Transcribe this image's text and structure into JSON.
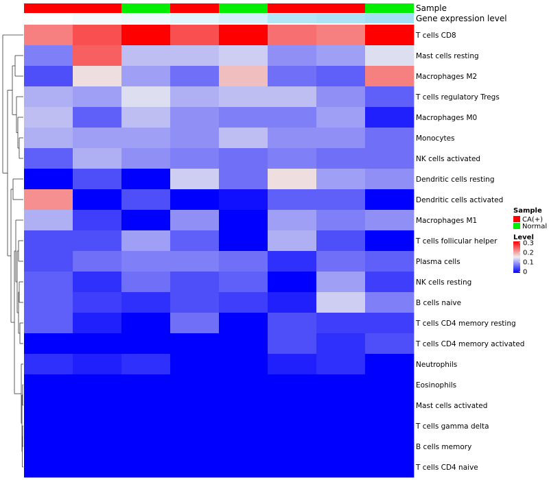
{
  "chart_data": {
    "type": "heatmap",
    "title": "",
    "annotations": [
      {
        "name": "Sample",
        "values": [
          "CA(+)",
          "CA(+)",
          "Normal",
          "CA(+)",
          "Normal",
          "CA(+)",
          "CA(+)",
          "Normal"
        ]
      },
      {
        "name": "Gene expression level",
        "values": [
          0.0,
          0.08,
          0.12,
          0.2,
          0.3,
          0.5,
          0.55,
          0.6
        ]
      }
    ],
    "rows": [
      "T cells CD8",
      "Mast cells resting",
      "Macrophages M2",
      "T cells regulatory  Tregs",
      "Macrophages M0",
      "Monocytes",
      "NK cells activated",
      "Dendritic cells resting",
      "Dendritic cells activated",
      "Macrophages M1",
      "T cells follicular helper",
      "Plasma cells",
      "NK cells resting",
      "B cells naive",
      "T cells CD4 memory resting",
      "T cells CD4 memory activated",
      "Neutrophils",
      "Eosinophils",
      "Mast cells activated",
      "T cells gamma delta",
      "B cells memory",
      "T cells CD4 naive"
    ],
    "values": [
      [
        0.22,
        0.25,
        0.3,
        0.25,
        0.3,
        0.23,
        0.22,
        0.3
      ],
      [
        0.08,
        0.24,
        0.12,
        0.12,
        0.13,
        0.09,
        0.1,
        0.14
      ],
      [
        0.05,
        0.16,
        0.1,
        0.07,
        0.18,
        0.07,
        0.06,
        0.22
      ],
      [
        0.11,
        0.1,
        0.14,
        0.11,
        0.12,
        0.12,
        0.09,
        0.06
      ],
      [
        0.12,
        0.06,
        0.12,
        0.09,
        0.08,
        0.08,
        0.1,
        0.02
      ],
      [
        0.11,
        0.1,
        0.1,
        0.09,
        0.12,
        0.09,
        0.09,
        0.07
      ],
      [
        0.06,
        0.11,
        0.09,
        0.08,
        0.07,
        0.08,
        0.07,
        0.07
      ],
      [
        0.0,
        0.05,
        0.0,
        0.13,
        0.07,
        0.16,
        0.1,
        0.09
      ],
      [
        0.21,
        0.0,
        0.05,
        0.0,
        0.01,
        0.06,
        0.06,
        0.0
      ],
      [
        0.11,
        0.04,
        0.0,
        0.09,
        0.0,
        0.1,
        0.08,
        0.09
      ],
      [
        0.05,
        0.05,
        0.1,
        0.06,
        0.0,
        0.11,
        0.05,
        0.0
      ],
      [
        0.05,
        0.07,
        0.08,
        0.08,
        0.07,
        0.03,
        0.07,
        0.06
      ],
      [
        0.06,
        0.03,
        0.07,
        0.05,
        0.06,
        0.0,
        0.1,
        0.04
      ],
      [
        0.06,
        0.04,
        0.03,
        0.05,
        0.04,
        0.02,
        0.13,
        0.08
      ],
      [
        0.06,
        0.02,
        0.0,
        0.07,
        0.0,
        0.05,
        0.04,
        0.04
      ],
      [
        0.0,
        0.0,
        0.0,
        0.0,
        0.0,
        0.05,
        0.03,
        0.05
      ],
      [
        0.03,
        0.02,
        0.03,
        0.0,
        0.0,
        0.02,
        0.03,
        0.0
      ],
      [
        0.0,
        0.0,
        0.0,
        0.0,
        0.0,
        0.0,
        0.0,
        0.0
      ],
      [
        0.0,
        0.0,
        0.0,
        0.0,
        0.0,
        0.0,
        0.0,
        0.0
      ],
      [
        0.0,
        0.0,
        0.0,
        0.0,
        0.0,
        0.0,
        0.0,
        0.0
      ],
      [
        0.0,
        0.0,
        0.0,
        0.0,
        0.0,
        0.0,
        0.0,
        0.0
      ],
      [
        0.0,
        0.0,
        0.0,
        0.0,
        0.0,
        0.0,
        0.0,
        0.0
      ]
    ],
    "color_scale": {
      "min": 0,
      "max": 0.3,
      "low": "#0000ff",
      "mid": "#eeeef0",
      "high": "#ff0000"
    },
    "legend": {
      "sample_title": "Sample",
      "sample_items": [
        {
          "label": "CA(+)",
          "color": "#ff0000"
        },
        {
          "label": "Normal",
          "color": "#00ee00"
        }
      ],
      "level_title": "Level",
      "level_ticks": [
        "0.3",
        "0.2",
        "0.1",
        "0"
      ],
      "placement": "right"
    },
    "gene_expression_colors": {
      "low": "#ffffff",
      "high": "#66ccf0"
    }
  }
}
